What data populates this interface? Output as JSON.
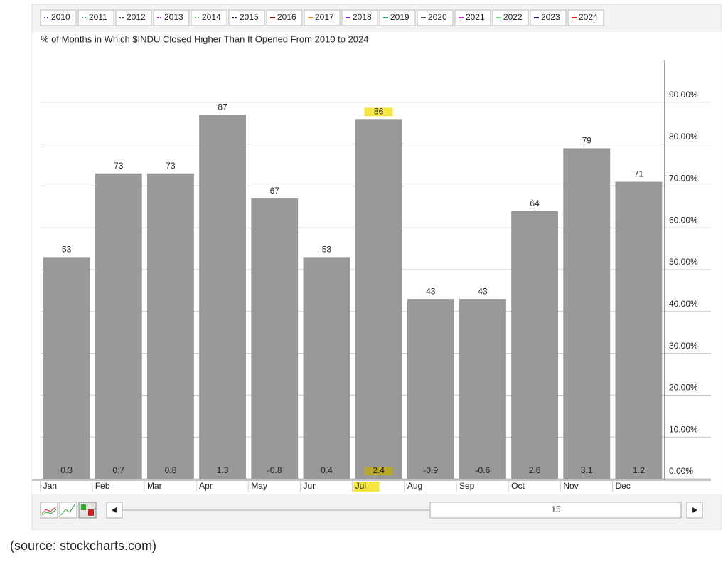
{
  "chart_data": {
    "type": "bar",
    "title": "% of Months in Which $INDU Closed Higher Than It Opened From 2010 to 2024",
    "legend": [
      {
        "name": "2010",
        "color": "#7030c0",
        "style": "dotted"
      },
      {
        "name": "2011",
        "color": "#2a9d8f",
        "style": "dotted"
      },
      {
        "name": "2012",
        "color": "#555555",
        "style": "dotted"
      },
      {
        "name": "2013",
        "color": "#e020e0",
        "style": "dotted"
      },
      {
        "name": "2014",
        "color": "#50d050",
        "style": "dotted"
      },
      {
        "name": "2015",
        "color": "#202080",
        "style": "dotted"
      },
      {
        "name": "2016",
        "color": "#a01010",
        "style": "solid"
      },
      {
        "name": "2017",
        "color": "#f08020",
        "style": "solid"
      },
      {
        "name": "2018",
        "color": "#8030d0",
        "style": "solid"
      },
      {
        "name": "2019",
        "color": "#2a9d8f",
        "style": "solid"
      },
      {
        "name": "2020",
        "color": "#555555",
        "style": "solid"
      },
      {
        "name": "2021",
        "color": "#e020e0",
        "style": "solid"
      },
      {
        "name": "2022",
        "color": "#70e070",
        "style": "solid"
      },
      {
        "name": "2023",
        "color": "#202090",
        "style": "solid"
      },
      {
        "name": "2024",
        "color": "#e02020",
        "style": "solid"
      }
    ],
    "categories": [
      "Jan",
      "Feb",
      "Mar",
      "Apr",
      "May",
      "Jun",
      "Jul",
      "Aug",
      "Sep",
      "Oct",
      "Nov",
      "Dec"
    ],
    "values": [
      53,
      73,
      73,
      87,
      67,
      53,
      86,
      43,
      43,
      64,
      79,
      71
    ],
    "returns": [
      0.3,
      0.7,
      0.8,
      1.3,
      -0.8,
      0.4,
      2.4,
      -0.9,
      -0.6,
      2.6,
      3.1,
      1.2
    ],
    "color": "#999999",
    "highlight": 6,
    "ylim": [
      0,
      100
    ],
    "yticks": [
      {
        "value": 0,
        "label": "0.00%"
      },
      {
        "value": 10,
        "label": "10.00%"
      },
      {
        "value": 20,
        "label": "20.00%"
      },
      {
        "value": 30,
        "label": "30.00%"
      },
      {
        "value": 40,
        "label": "40.00%"
      },
      {
        "value": 50,
        "label": "50.00%"
      },
      {
        "value": 60,
        "label": "60.00%"
      },
      {
        "value": 70,
        "label": "70.00%"
      },
      {
        "value": 80,
        "label": "80.00%"
      },
      {
        "value": 90,
        "label": "90.00%"
      }
    ],
    "grid": true,
    "scroll_value": 15,
    "source": "(source: stockcharts.com)"
  }
}
